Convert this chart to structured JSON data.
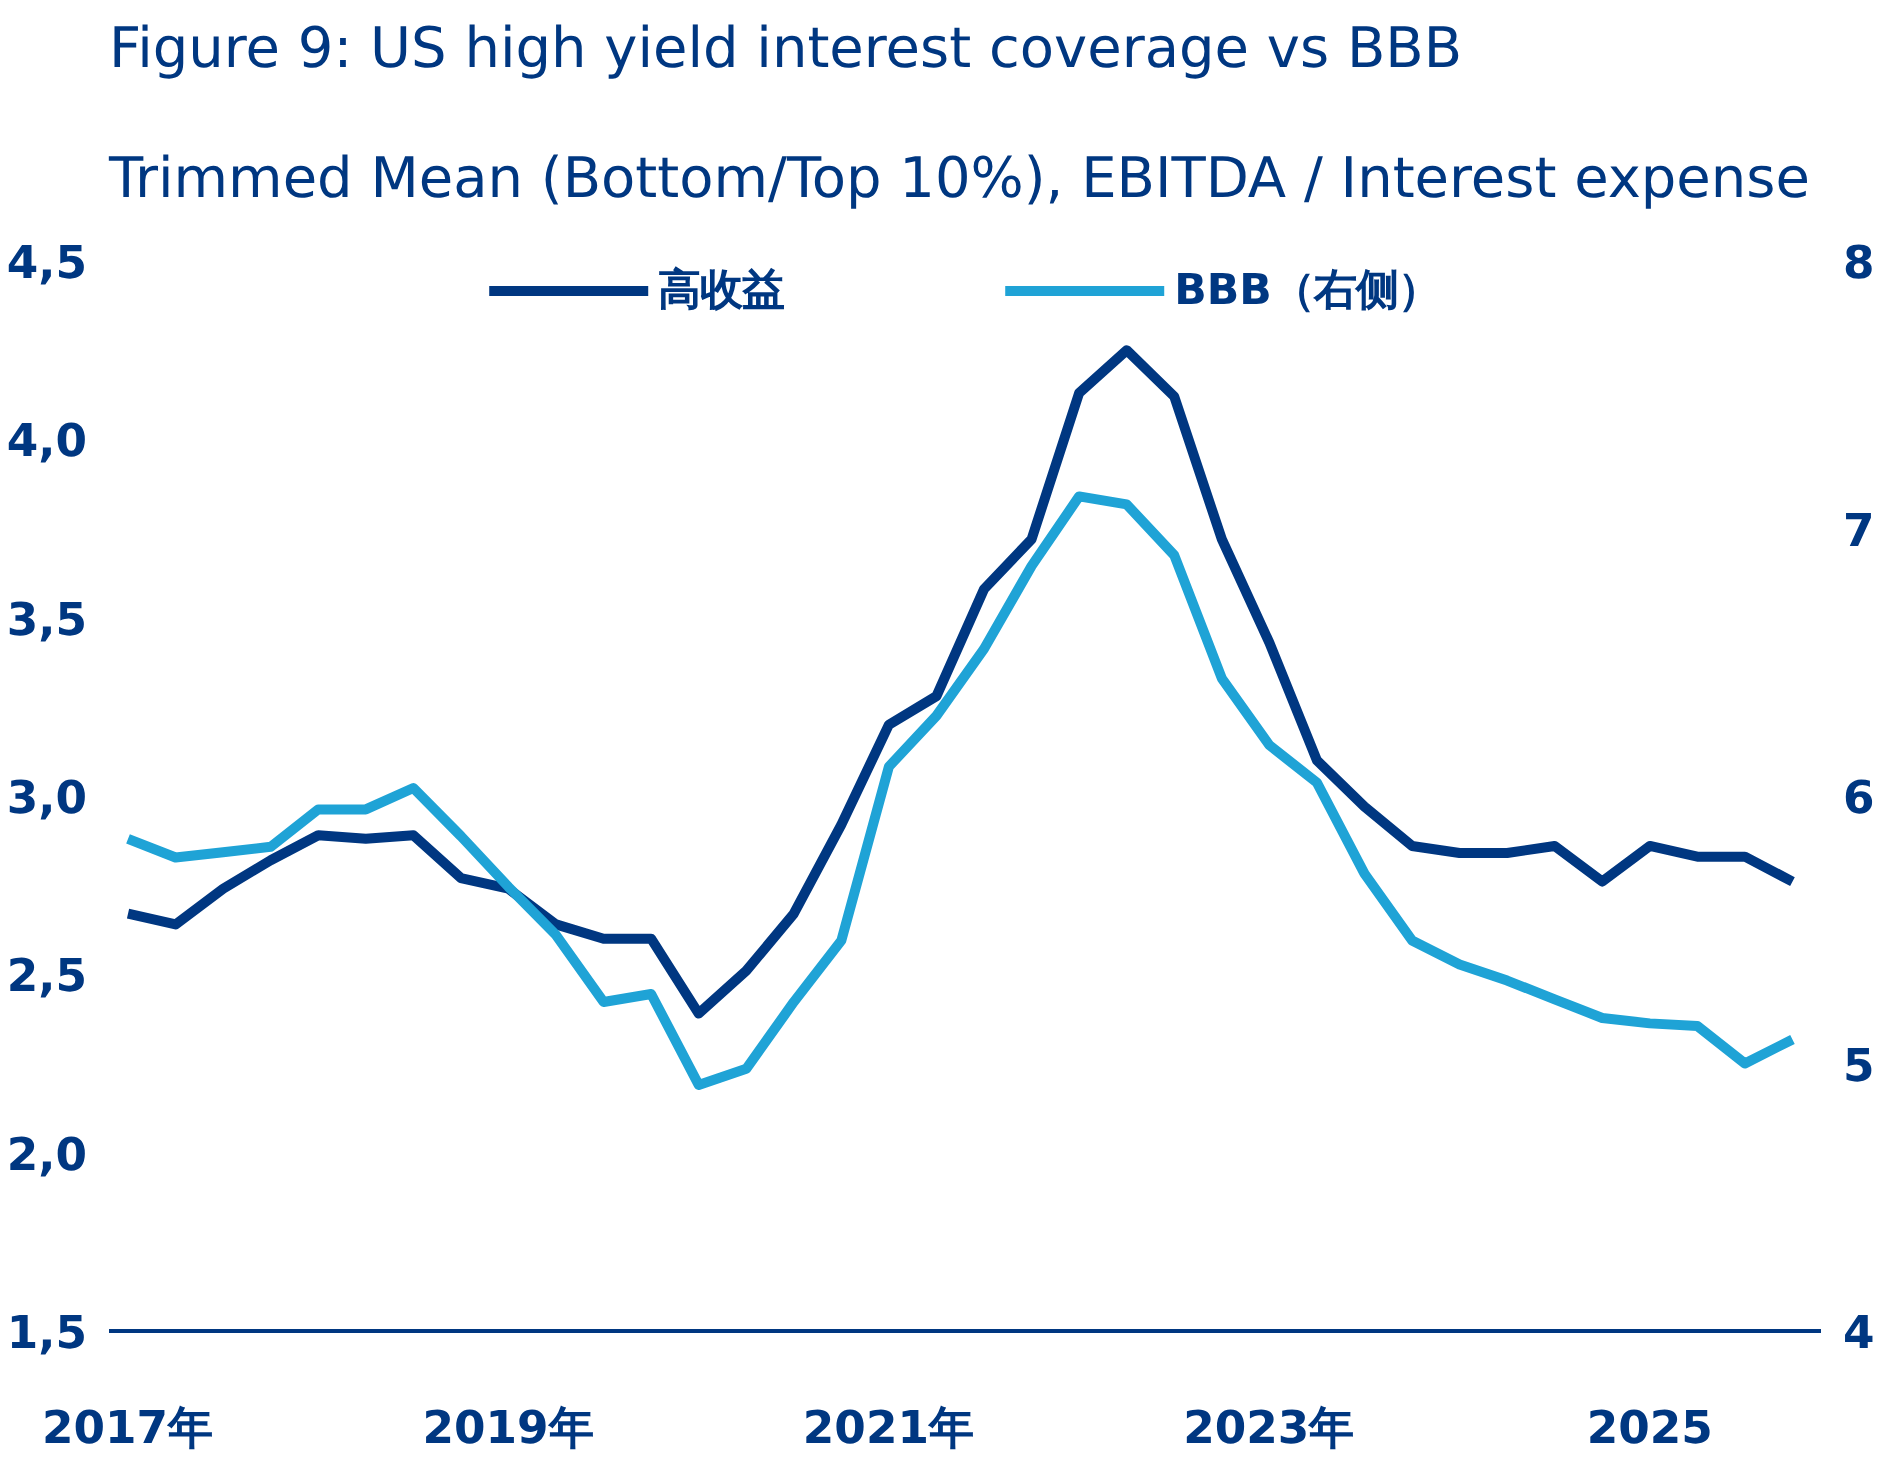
{
  "chart_data": {
    "type": "line",
    "title": "Figure 9:  US high yield interest coverage vs BBB",
    "subtitle": "Trimmed Mean (Bottom/Top 10%), EBITDA / Interest expense",
    "x": [
      2017.0,
      2017.25,
      2017.5,
      2017.75,
      2018.0,
      2018.25,
      2018.5,
      2018.75,
      2019.0,
      2019.25,
      2019.5,
      2019.75,
      2020.0,
      2020.25,
      2020.5,
      2020.75,
      2021.0,
      2021.25,
      2021.5,
      2021.75,
      2022.0,
      2022.25,
      2022.5,
      2022.75,
      2023.0,
      2023.25,
      2023.5,
      2023.75,
      2024.0,
      2024.25,
      2024.5,
      2024.75,
      2025.0,
      2025.25,
      2025.5,
      2025.75
    ],
    "series": [
      {
        "name": "高收益",
        "color": "#003781",
        "values": [
          2.67,
          2.64,
          2.74,
          2.82,
          2.89,
          2.88,
          2.89,
          2.77,
          2.74,
          2.64,
          2.6,
          2.6,
          2.39,
          2.51,
          2.67,
          2.92,
          3.2,
          3.28,
          3.58,
          3.72,
          4.13,
          4.25,
          4.12,
          3.72,
          3.43,
          3.1,
          2.97,
          2.86,
          2.84,
          2.84,
          2.86,
          2.76,
          2.86,
          2.83,
          2.83,
          2.76
        ]
      },
      {
        "name": "BBB（右侧）",
        "color": "#1fa3d6",
        "axis": "y2",
        "values": [
          5.84,
          5.77,
          5.79,
          5.81,
          5.95,
          5.95,
          6.03,
          5.85,
          5.66,
          5.48,
          5.23,
          5.26,
          4.92,
          4.98,
          5.23,
          5.46,
          6.11,
          6.3,
          6.55,
          6.86,
          7.12,
          7.09,
          6.9,
          6.44,
          6.19,
          6.05,
          5.71,
          5.46,
          5.37,
          5.31,
          5.24,
          5.17,
          5.15,
          5.14,
          5.0,
          5.09
        ]
      }
    ],
    "xlim": [
      2016.9,
      2025.9
    ],
    "xticks": [
      {
        "value": 2017,
        "label": "2017年"
      },
      {
        "value": 2019,
        "label": "2019年"
      },
      {
        "value": 2021,
        "label": "2021年"
      },
      {
        "value": 2023,
        "label": "2023年"
      },
      {
        "value": 2025,
        "label": "2025"
      }
    ],
    "ylim": [
      1.5,
      4.5
    ],
    "yticks": [
      {
        "value": 1.5,
        "label": "1,5"
      },
      {
        "value": 2.0,
        "label": "2,0"
      },
      {
        "value": 2.5,
        "label": "2,5"
      },
      {
        "value": 3.0,
        "label": "3,0"
      },
      {
        "value": 3.5,
        "label": "3,5"
      },
      {
        "value": 4.0,
        "label": "4,0"
      },
      {
        "value": 4.5,
        "label": "4,5"
      }
    ],
    "y2lim": [
      4,
      8
    ],
    "y2ticks": [
      4,
      5,
      6,
      7,
      8
    ],
    "grid": false,
    "legend": "top",
    "line_style": "solid"
  }
}
